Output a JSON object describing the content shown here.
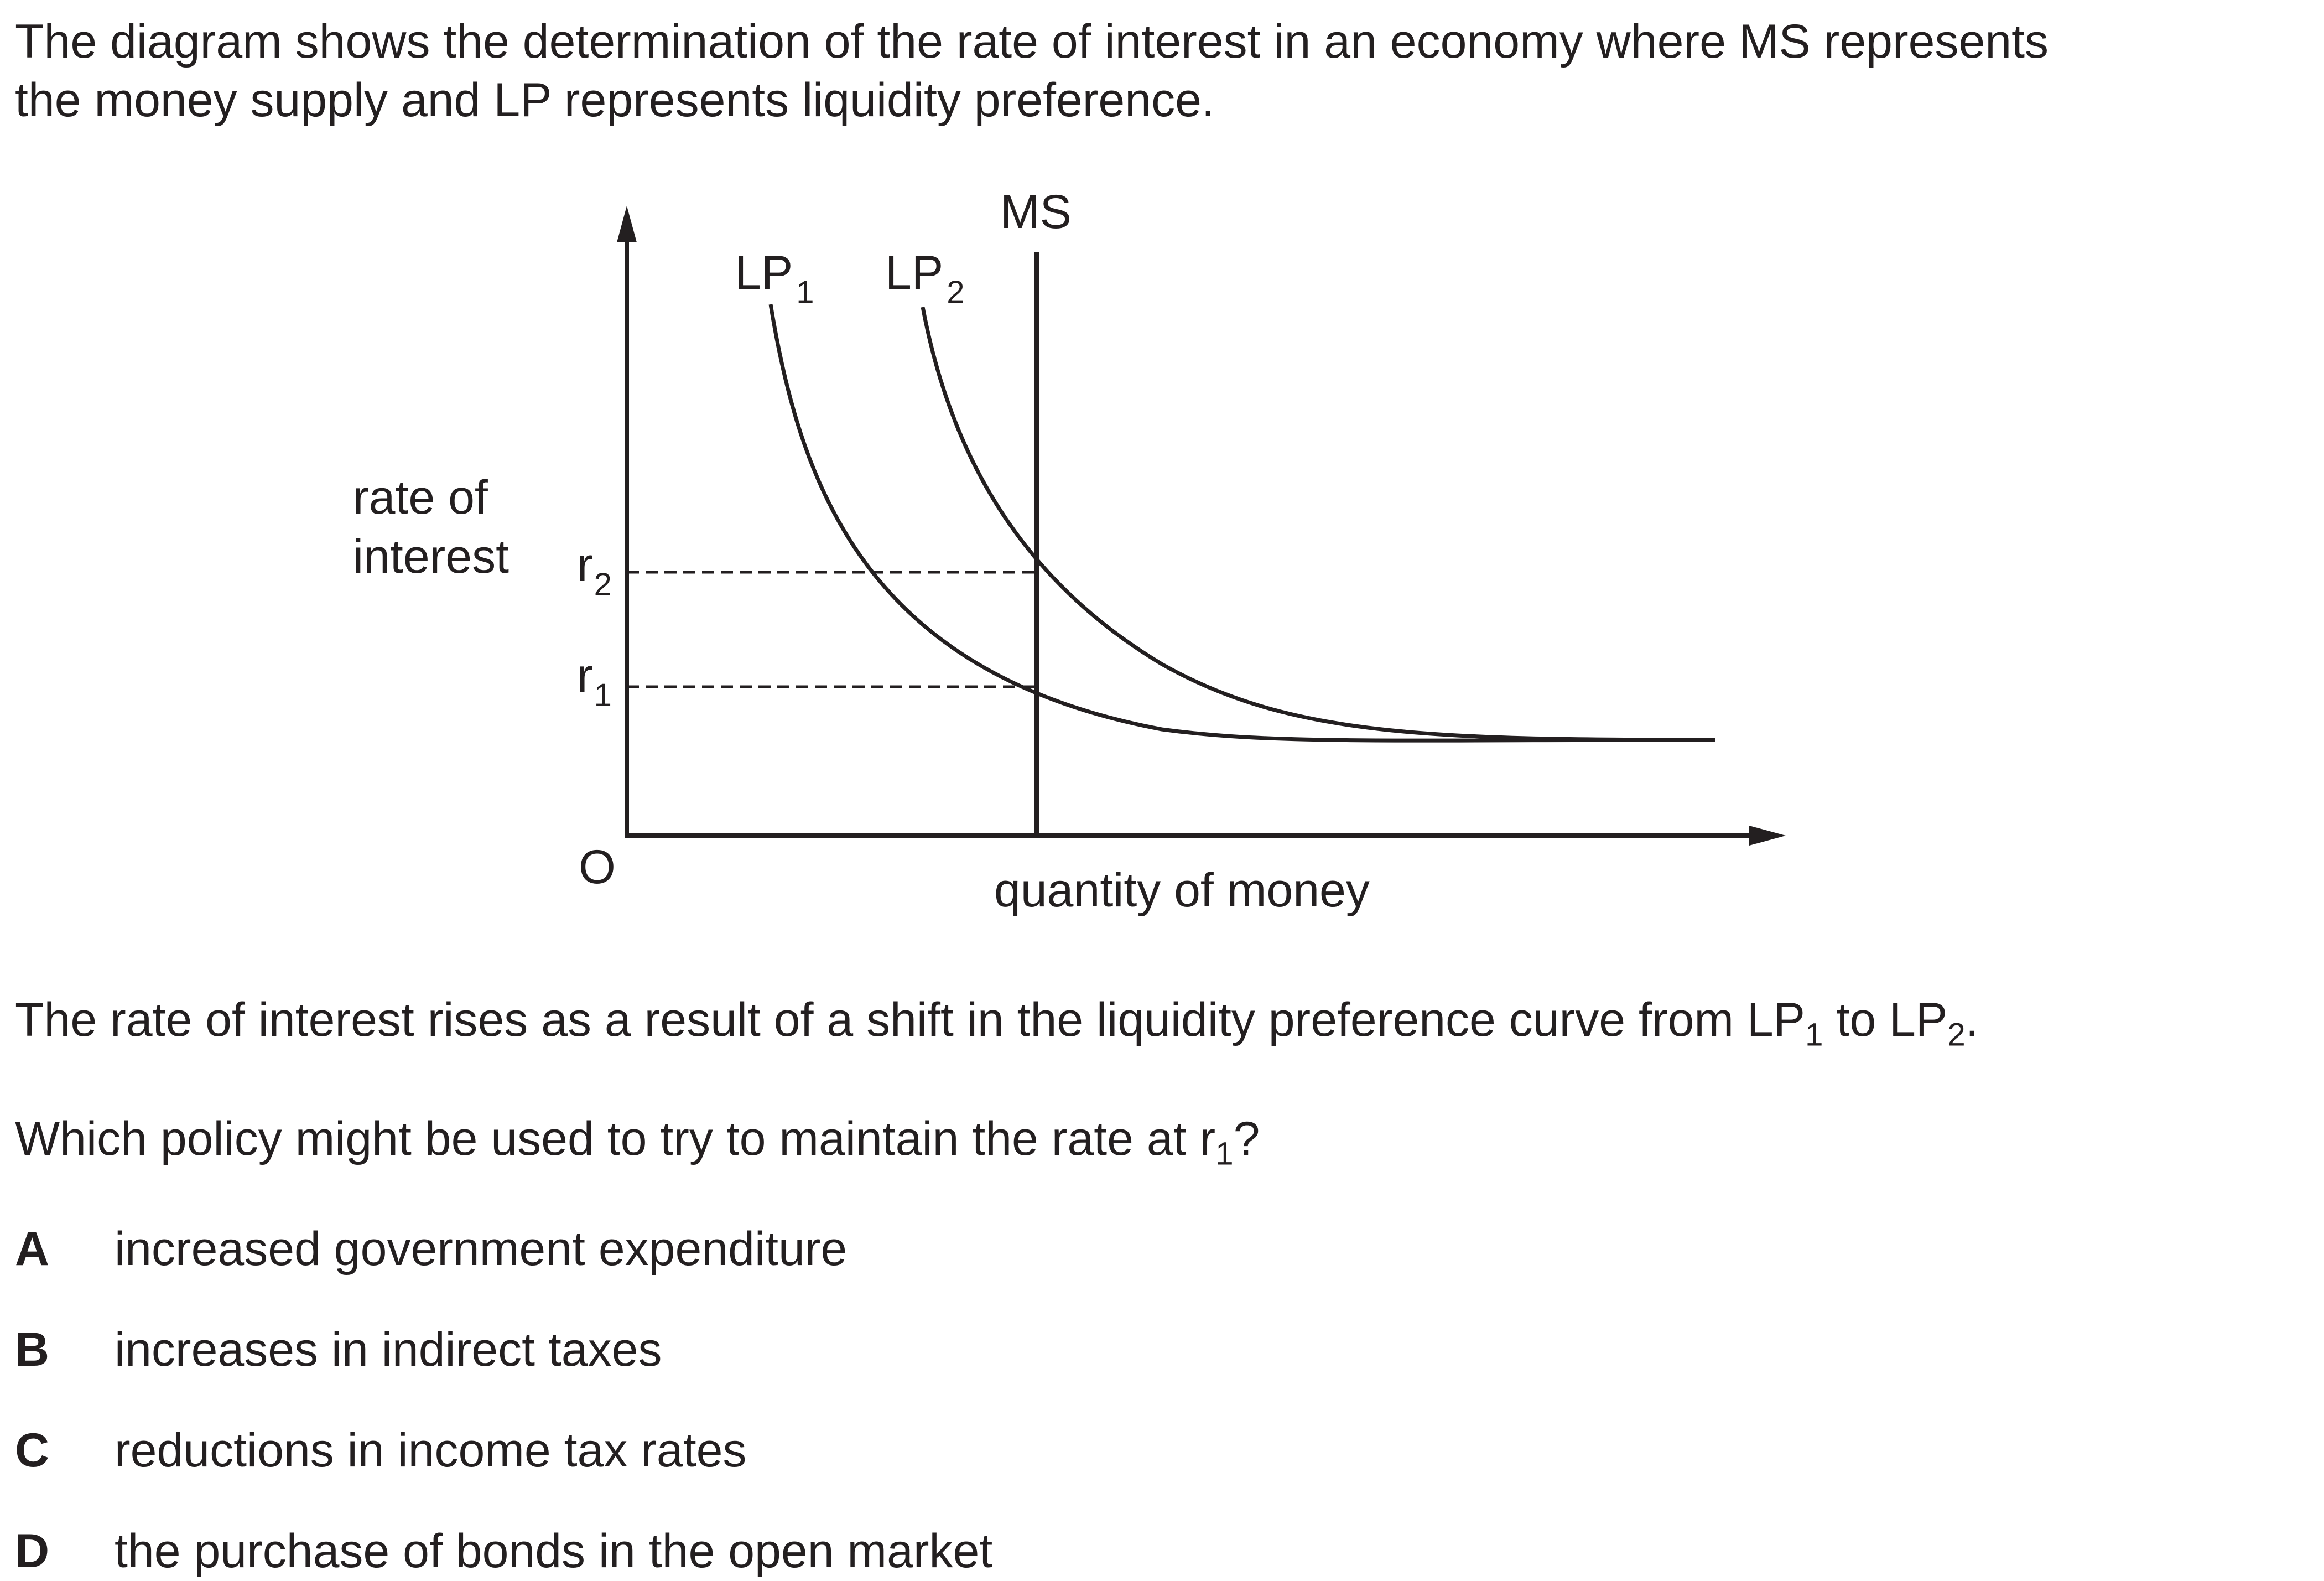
{
  "intro": {
    "line1": "The diagram shows the determination of the rate of interest in an economy where MS represents",
    "line2": "the money supply and LP represents liquidity preference."
  },
  "diagram": {
    "y_axis_label_line1": "rate of",
    "y_axis_label_line2": "interest",
    "x_axis_label": "quantity of money",
    "origin_label": "O",
    "ms_label": "MS",
    "lp1": {
      "base": "LP",
      "sub": "1"
    },
    "lp2": {
      "base": "LP",
      "sub": "2"
    },
    "r1": {
      "base": "r",
      "sub": "1"
    },
    "r2": {
      "base": "r",
      "sub": "2"
    }
  },
  "statement": {
    "prefix": "The rate of interest rises as a result of a shift in the liquidity preference curve from LP",
    "sub1": "1",
    "middle": " to LP",
    "sub2": "2",
    "suffix": "."
  },
  "question": {
    "prefix": "Which policy might be used to try to maintain the rate at r",
    "sub": "1",
    "suffix": "?"
  },
  "options": [
    {
      "letter": "A",
      "text": "increased government expenditure"
    },
    {
      "letter": "B",
      "text": "increases in indirect taxes"
    },
    {
      "letter": "C",
      "text": "reductions in income tax rates"
    },
    {
      "letter": "D",
      "text": "the purchase of bonds in the open market"
    }
  ]
}
